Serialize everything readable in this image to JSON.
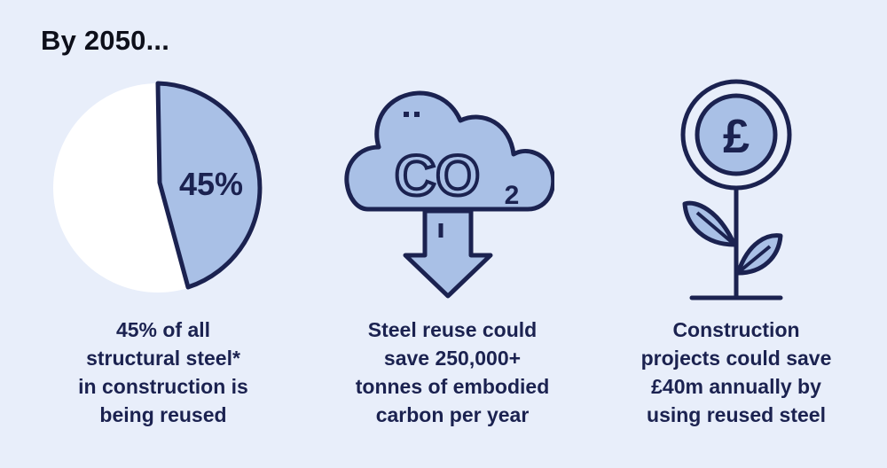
{
  "heading": "By 2050...",
  "colors": {
    "background": "#e8eefa",
    "navy": "#1b2250",
    "fill_blue": "#a9c0e6",
    "white": "#ffffff"
  },
  "stats": [
    {
      "icon": "pie-chart-icon",
      "value_label": "45%",
      "share_fraction": 0.45,
      "caption_lines": [
        "45% of all",
        "structural steel*",
        "in construction is",
        "being reused"
      ]
    },
    {
      "icon": "co2-cloud-down-arrow-icon",
      "co2_label": "CO",
      "co2_subscript": "2",
      "caption_lines": [
        "Steel reuse could",
        "save 250,000+",
        "tonnes of embodied",
        "carbon per year"
      ]
    },
    {
      "icon": "pound-coin-plant-icon",
      "symbol": "£",
      "caption_lines": [
        "Construction",
        "projects could save",
        "£40m annually by",
        "using reused steel"
      ]
    }
  ]
}
